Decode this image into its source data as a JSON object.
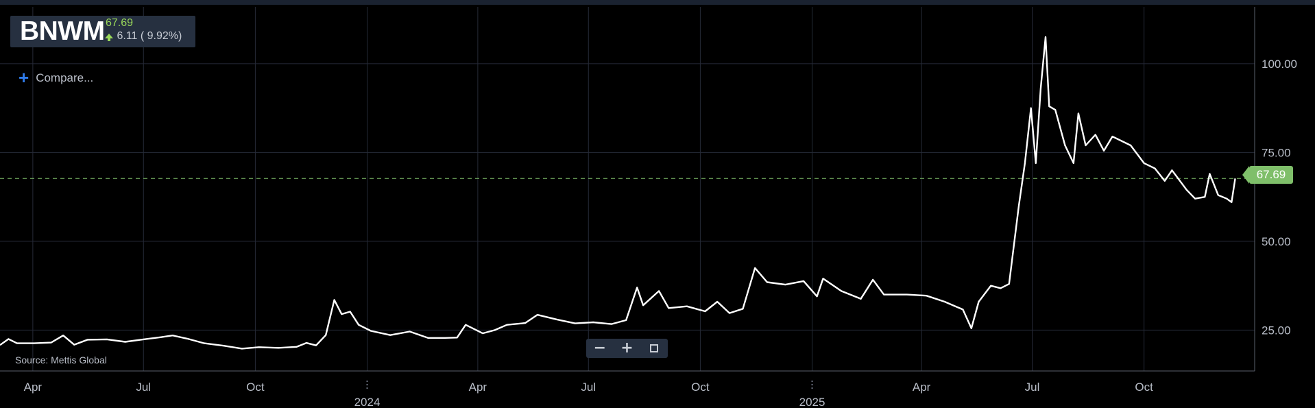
{
  "header": {
    "symbol": "BNWM",
    "price": "67.69",
    "change": "6.11",
    "change_pct": "( 9.92%)",
    "price_color": "#9ad85a",
    "change_icon": "arrow-up-icon"
  },
  "compare_label": "Compare...",
  "source": "Source: Mettis Global",
  "price_tag": "67.69",
  "zoom": {
    "out": "−",
    "in": "+"
  },
  "colors": {
    "line": "#ffffff",
    "last_price_line": "#7fbf6a",
    "background": "#000000",
    "grid": "#262b38"
  },
  "chart_data": {
    "type": "line",
    "title": "",
    "xlabel": "",
    "ylabel": "",
    "ylim": [
      13.5,
      116
    ],
    "grid": true,
    "last_price": 67.69,
    "yticks": [
      25,
      50,
      75,
      100
    ],
    "ytick_labels": [
      "25.00",
      "50.00",
      "75.00",
      "100.00"
    ],
    "xticks": [
      {
        "date": "2023-04-01",
        "label": "Apr"
      },
      {
        "date": "2023-07-01",
        "label": "Jul"
      },
      {
        "date": "2023-10-01",
        "label": "Oct"
      },
      {
        "date": "2024-01-01",
        "label": "2024"
      },
      {
        "date": "2024-04-01",
        "label": "Apr"
      },
      {
        "date": "2024-07-01",
        "label": "Jul"
      },
      {
        "date": "2024-10-01",
        "label": "Oct"
      },
      {
        "date": "2025-01-01",
        "label": "2025"
      },
      {
        "date": "2025-04-01",
        "label": "Apr"
      },
      {
        "date": "2025-07-01",
        "label": "Jul"
      },
      {
        "date": "2025-10-01",
        "label": "Oct"
      }
    ],
    "xlim": [
      "2023-03-05",
      "2025-12-31"
    ],
    "series": [
      {
        "name": "",
        "points": [
          [
            "2023-03-05",
            20.8
          ],
          [
            "2023-03-12",
            22.5
          ],
          [
            "2023-03-19",
            21.3
          ],
          [
            "2023-04-02",
            21.3
          ],
          [
            "2023-04-16",
            21.5
          ],
          [
            "2023-04-26",
            23.5
          ],
          [
            "2023-05-05",
            20.9
          ],
          [
            "2023-05-16",
            22.3
          ],
          [
            "2023-06-01",
            22.4
          ],
          [
            "2023-06-16",
            21.7
          ],
          [
            "2023-07-01",
            22.4
          ],
          [
            "2023-07-15",
            23.0
          ],
          [
            "2023-07-25",
            23.5
          ],
          [
            "2023-08-06",
            22.6
          ],
          [
            "2023-08-20",
            21.3
          ],
          [
            "2023-09-05",
            20.6
          ],
          [
            "2023-09-20",
            19.8
          ],
          [
            "2023-10-04",
            20.2
          ],
          [
            "2023-10-20",
            20.0
          ],
          [
            "2023-11-04",
            20.3
          ],
          [
            "2023-11-12",
            21.4
          ],
          [
            "2023-11-20",
            20.7
          ],
          [
            "2023-11-28",
            23.6
          ],
          [
            "2023-12-05",
            33.5
          ],
          [
            "2023-12-11",
            29.5
          ],
          [
            "2023-12-18",
            30.2
          ],
          [
            "2023-12-25",
            26.5
          ],
          [
            "2024-01-04",
            24.8
          ],
          [
            "2024-01-20",
            23.6
          ],
          [
            "2024-02-05",
            24.6
          ],
          [
            "2024-02-20",
            22.8
          ],
          [
            "2024-03-05",
            22.8
          ],
          [
            "2024-03-15",
            22.9
          ],
          [
            "2024-03-22",
            26.5
          ],
          [
            "2024-04-05",
            24.1
          ],
          [
            "2024-04-15",
            25.0
          ],
          [
            "2024-04-25",
            26.5
          ],
          [
            "2024-05-10",
            27.0
          ],
          [
            "2024-05-20",
            29.3
          ],
          [
            "2024-06-05",
            28.0
          ],
          [
            "2024-06-20",
            26.9
          ],
          [
            "2024-07-05",
            27.2
          ],
          [
            "2024-07-20",
            26.7
          ],
          [
            "2024-08-01",
            27.8
          ],
          [
            "2024-08-10",
            37.0
          ],
          [
            "2024-08-15",
            32.0
          ],
          [
            "2024-08-28",
            36.0
          ],
          [
            "2024-09-05",
            31.2
          ],
          [
            "2024-09-20",
            31.7
          ],
          [
            "2024-10-05",
            30.3
          ],
          [
            "2024-10-15",
            33.0
          ],
          [
            "2024-10-25",
            29.8
          ],
          [
            "2024-11-05",
            31.0
          ],
          [
            "2024-11-15",
            42.5
          ],
          [
            "2024-11-25",
            38.5
          ],
          [
            "2024-12-10",
            37.8
          ],
          [
            "2024-12-25",
            38.8
          ],
          [
            "2025-01-05",
            34.5
          ],
          [
            "2025-01-10",
            39.5
          ],
          [
            "2025-01-25",
            36.0
          ],
          [
            "2025-02-10",
            33.8
          ],
          [
            "2025-02-20",
            39.2
          ],
          [
            "2025-03-01",
            35.0
          ],
          [
            "2025-03-20",
            35.0
          ],
          [
            "2025-04-05",
            34.7
          ],
          [
            "2025-04-20",
            33.0
          ],
          [
            "2025-05-05",
            30.8
          ],
          [
            "2025-05-12",
            25.5
          ],
          [
            "2025-05-18",
            33.0
          ],
          [
            "2025-05-28",
            37.5
          ],
          [
            "2025-06-05",
            36.8
          ],
          [
            "2025-06-12",
            38.0
          ],
          [
            "2025-06-20",
            60.0
          ],
          [
            "2025-06-25",
            72.0
          ],
          [
            "2025-06-30",
            87.5
          ],
          [
            "2025-07-04",
            72.0
          ],
          [
            "2025-07-08",
            93.0
          ],
          [
            "2025-07-12",
            107.5
          ],
          [
            "2025-07-15",
            88.0
          ],
          [
            "2025-07-20",
            87.0
          ],
          [
            "2025-07-28",
            77.0
          ],
          [
            "2025-08-04",
            72.0
          ],
          [
            "2025-08-08",
            86.0
          ],
          [
            "2025-08-14",
            77.0
          ],
          [
            "2025-08-22",
            80.0
          ],
          [
            "2025-08-29",
            75.5
          ],
          [
            "2025-09-05",
            79.5
          ],
          [
            "2025-09-20",
            77.0
          ],
          [
            "2025-10-01",
            72.0
          ],
          [
            "2025-10-10",
            70.5
          ],
          [
            "2025-10-18",
            67.0
          ],
          [
            "2025-10-24",
            70.0
          ],
          [
            "2025-11-05",
            64.5
          ],
          [
            "2025-11-12",
            62.0
          ],
          [
            "2025-11-20",
            62.5
          ],
          [
            "2025-11-24",
            69.0
          ],
          [
            "2025-12-01",
            63.0
          ],
          [
            "2025-12-08",
            62.0
          ],
          [
            "2025-12-12",
            61.0
          ],
          [
            "2025-12-15",
            67.69
          ]
        ]
      }
    ]
  }
}
